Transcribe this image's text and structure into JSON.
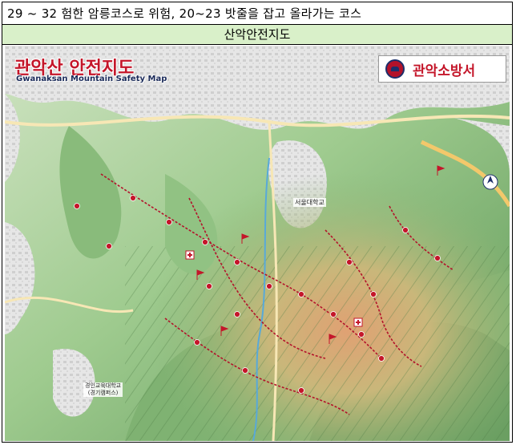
{
  "description_row": {
    "text": "29 ~ 32 험한 암릉코스로 위험, 20~23 밧줄을 잡고 올라가는 코스"
  },
  "header_row": {
    "title": "산악안전지도"
  },
  "map": {
    "title_ko": "관악산 안전지도",
    "title_en": "Gwanaksan Mountain Safety Map",
    "station_name": "관악소방서",
    "campus_label": "서울대학교",
    "school_label_line1": "경인교육대학교",
    "school_label_line2": "(경기캠퍼스)",
    "colors": {
      "title_red": "#c4162a",
      "route_red": "#b3122a",
      "forest_green": "#6fa866",
      "urban_gray": "#e3e3e3"
    }
  }
}
